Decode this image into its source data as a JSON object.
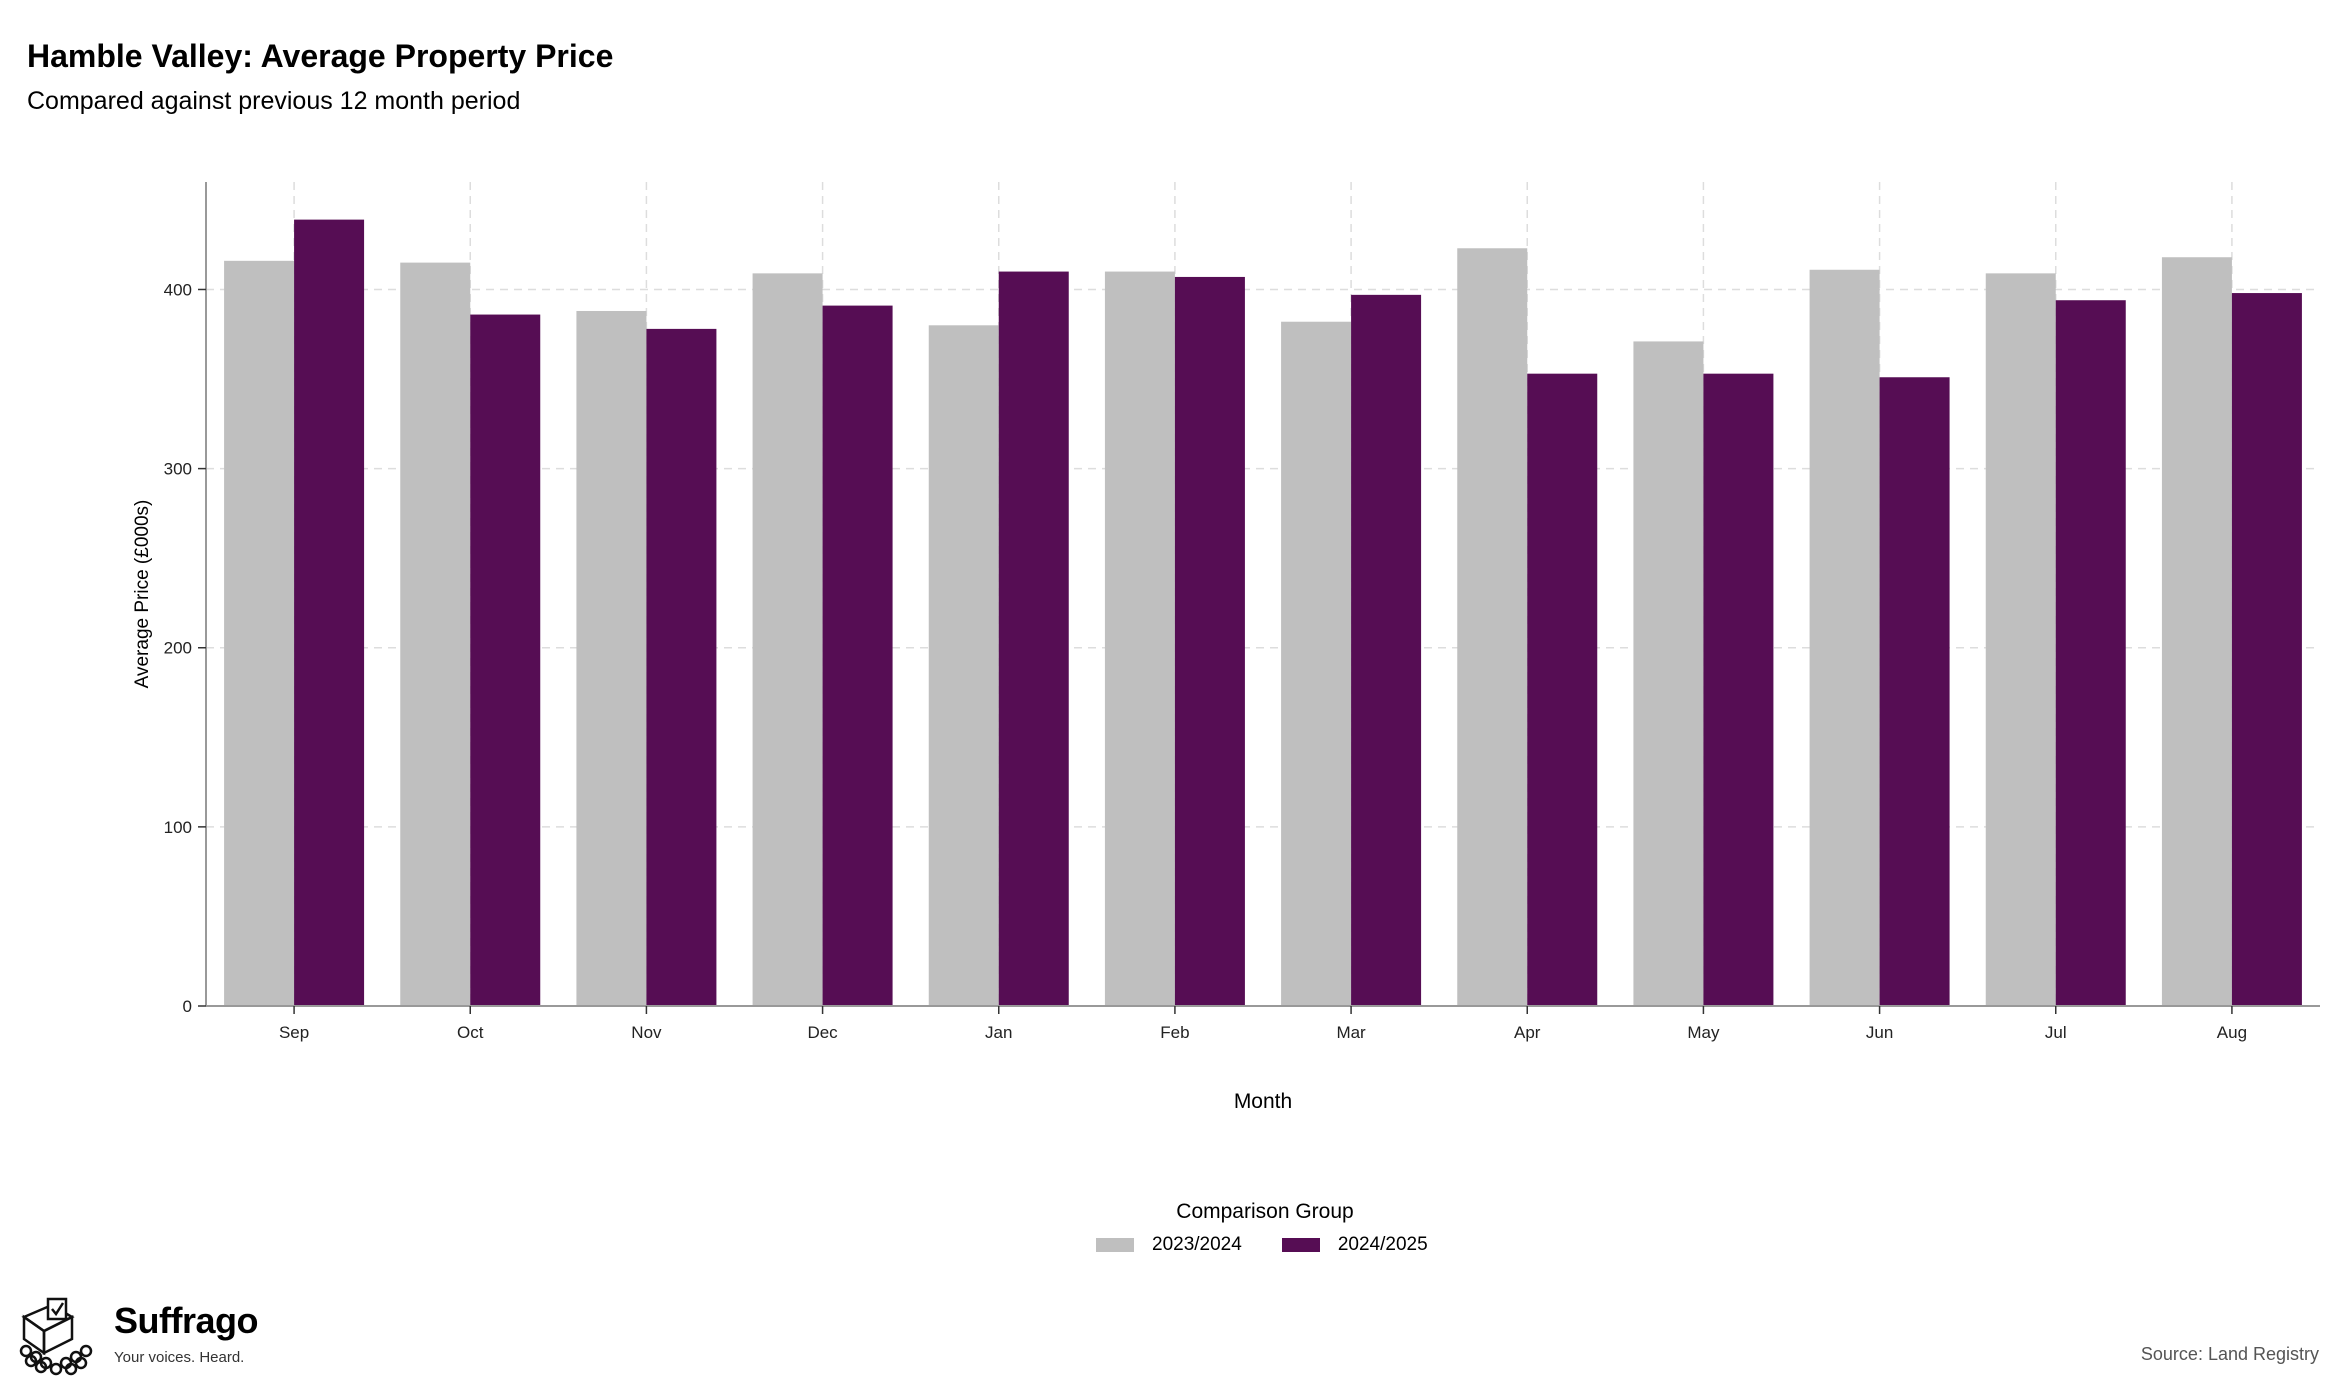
{
  "header": {
    "title": "Hamble Valley: Average Property Price",
    "subtitle": "Compared against previous 12 month period"
  },
  "chart_data": {
    "type": "bar",
    "xlabel": "Month",
    "ylabel": "Average Price (£000s)",
    "ylim": [
      0,
      460
    ],
    "yticks": [
      0,
      100,
      200,
      300,
      400
    ],
    "grid": true,
    "legend_position": "bottom",
    "categories": [
      "Sep",
      "Oct",
      "Nov",
      "Dec",
      "Jan",
      "Feb",
      "Mar",
      "Apr",
      "May",
      "Jun",
      "Jul",
      "Aug"
    ],
    "series": [
      {
        "name": "2023/2024",
        "color": "#bfbfbf",
        "values": [
          416,
          415,
          388,
          409,
          380,
          410,
          382,
          423,
          371,
          411,
          409,
          418
        ]
      },
      {
        "name": "2024/2025",
        "color": "#560d54",
        "values": [
          439,
          386,
          378,
          391,
          410,
          407,
          397,
          353,
          353,
          351,
          394,
          398
        ]
      }
    ]
  },
  "legend": {
    "title": "Comparison Group",
    "items": [
      {
        "label": "2023/2024",
        "color": "#bfbfbf"
      },
      {
        "label": "2024/2025",
        "color": "#560d54"
      }
    ]
  },
  "logo": {
    "brand": "Suffrago",
    "tagline": "Your voices. Heard.",
    "icon": "ballot-box-icon"
  },
  "footer": {
    "source": "Source: Land Registry"
  }
}
